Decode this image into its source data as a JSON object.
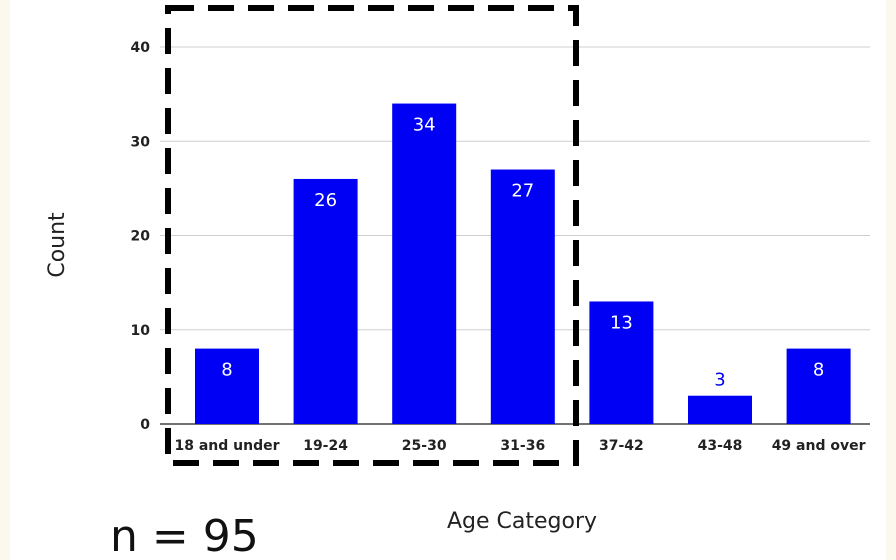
{
  "chart_data": {
    "type": "bar",
    "title": "",
    "xlabel": "Age Category",
    "ylabel": "Count",
    "categories": [
      "18 and under",
      "19-24",
      "25-30",
      "31-36",
      "37-42",
      "43-48",
      "49 and over"
    ],
    "values": [
      8,
      26,
      34,
      27,
      13,
      3,
      8
    ],
    "data_labels": [
      "8",
      "26",
      "34",
      "27",
      "13",
      "3",
      "8"
    ],
    "ylim": [
      0,
      40
    ],
    "yticks": [
      0,
      10,
      20,
      30,
      40
    ],
    "ytick_labels": [
      "0",
      "10",
      "20",
      "30",
      "40"
    ],
    "grid": true,
    "bar_color": "#0000f5",
    "highlight": {
      "categories": [
        "18 and under",
        "19-24",
        "25-30",
        "31-36"
      ],
      "style": "dashed-box"
    }
  },
  "annotation": {
    "n_label": "n = 95"
  }
}
